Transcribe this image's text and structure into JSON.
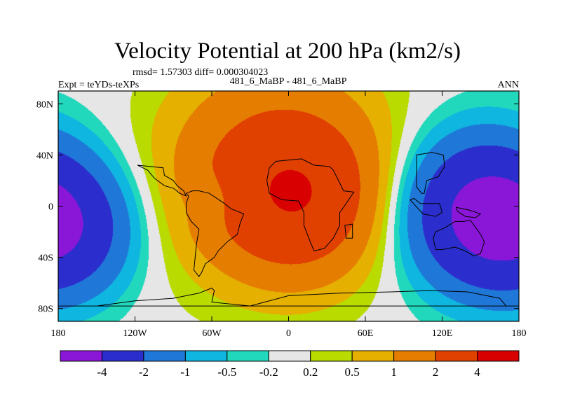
{
  "chart_data": {
    "type": "heatmap",
    "title": "Velocity Potential at 200 hPa (km2/s)",
    "stats_text": "rmsd= 1.57303 diff= 0.000304023",
    "left_label": "Expt = teYDs-teXPs",
    "center_label": "481_6_MaBP - 481_6_MaBP",
    "right_label": "ANN",
    "x_ticks": [
      {
        "value": -180,
        "label": "180"
      },
      {
        "value": -120,
        "label": "120W"
      },
      {
        "value": -60,
        "label": "60W"
      },
      {
        "value": 0,
        "label": "0"
      },
      {
        "value": 60,
        "label": "60E"
      },
      {
        "value": 120,
        "label": "120E"
      },
      {
        "value": 180,
        "label": "180"
      }
    ],
    "y_ticks": [
      {
        "value": 80,
        "label": "80N"
      },
      {
        "value": 40,
        "label": "40N"
      },
      {
        "value": 0,
        "label": "0"
      },
      {
        "value": -40,
        "label": "40S"
      },
      {
        "value": -80,
        "label": "80S"
      }
    ],
    "xlim": [
      -180,
      180
    ],
    "ylim": [
      -90,
      90
    ],
    "colorbar": {
      "levels": [
        "-4",
        "-2",
        "-1",
        "-0.5",
        "-0.2",
        "0.2",
        "0.5",
        "1",
        "2",
        "4"
      ],
      "colors": [
        "#8a17d8",
        "#2b2ecc",
        "#1f78d8",
        "#0fb6e0",
        "#22d8bc",
        "#e6e6e6",
        "#b9db00",
        "#e5b000",
        "#e57e00",
        "#e04000",
        "#d80000"
      ]
    },
    "field": {
      "description_units": "km2/s",
      "centers": [
        {
          "lon": 10,
          "lat": 5,
          "value": 2.6,
          "radius": 42
        },
        {
          "lon": -35,
          "lat": 20,
          "value": 1.2,
          "radius": 55
        },
        {
          "lon": 5,
          "lat": 45,
          "value": 0.9,
          "radius": 60
        },
        {
          "lon": 150,
          "lat": -5,
          "value": -4.4,
          "radius": 40
        },
        {
          "lon": -170,
          "lat": -20,
          "value": -2.2,
          "radius": 35
        },
        {
          "lon": -60,
          "lat": 5,
          "value": -0.6,
          "radius": 14
        }
      ]
    }
  }
}
